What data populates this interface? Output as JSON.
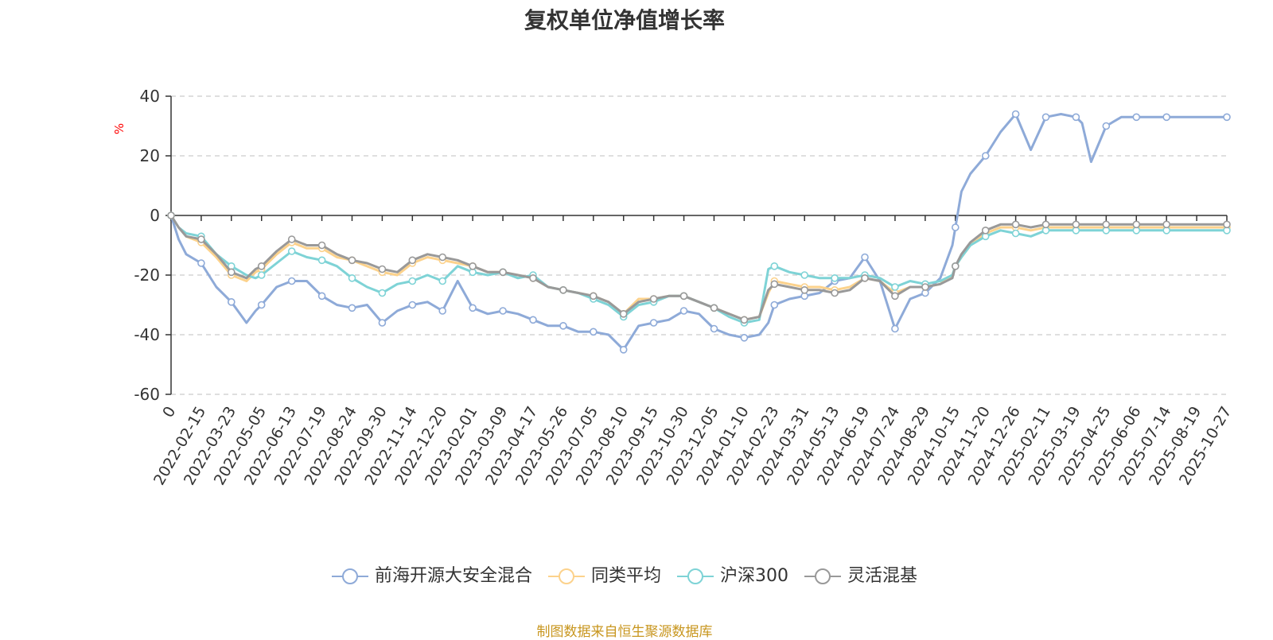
{
  "chart_data": {
    "type": "line",
    "title": "复权单位净值增长率",
    "ylabel": "%",
    "ylim": [
      -60,
      40
    ],
    "yticks": [
      40,
      20,
      0,
      -20,
      -40,
      -60
    ],
    "grid": true,
    "legend_position": "bottom",
    "source_note": "制图数据来自恒生聚源数据库",
    "x_tick_labels": [
      "0",
      "2022-02-15",
      "2022-03-23",
      "2022-05-05",
      "2022-06-13",
      "2022-07-19",
      "2022-08-24",
      "2022-09-30",
      "2022-11-14",
      "2022-12-20",
      "2023-02-01",
      "2023-03-09",
      "2023-04-17",
      "2023-05-26",
      "2023-07-05",
      "2023-08-10",
      "2023-09-15",
      "2023-10-30",
      "2023-12-05",
      "2024-01-10",
      "2024-02-23",
      "2024-03-31",
      "2024-05-13",
      "2024-06-19",
      "2024-07-24",
      "2024-08-29",
      "2024-10-15",
      "2024-11-20",
      "2024-12-26",
      "2025-02-11",
      "2025-03-19",
      "2025-04-25",
      "2025-06-06",
      "2025-07-14",
      "2025-08-19",
      "2025-10-27"
    ],
    "x": [
      0,
      0.25,
      0.5,
      1,
      1.5,
      2,
      2.5,
      2.8,
      3,
      3.5,
      4,
      4.5,
      5,
      5.5,
      6,
      6.5,
      7,
      7.5,
      8,
      8.5,
      9,
      9.5,
      10,
      10.5,
      11,
      11.5,
      12,
      12.5,
      13,
      13.5,
      14,
      14.5,
      15,
      15.5,
      16,
      16.5,
      17,
      17.5,
      18,
      18.5,
      19,
      19.5,
      19.8,
      20,
      20.5,
      21,
      21.5,
      22,
      22.5,
      23,
      23.5,
      24,
      24.5,
      25,
      25.5,
      25.9,
      26,
      26.2,
      26.5,
      27,
      27.5,
      28,
      28.5,
      29,
      29.5,
      30,
      30.2,
      30.5,
      31,
      31.5,
      32,
      32.5,
      33,
      33.3,
      33.6,
      33.9,
      34.2,
      34.5,
      34.8,
      35
    ],
    "series": [
      {
        "name": "前海开源大安全混合",
        "color": "#8eaad8",
        "values": [
          0,
          -8,
          -13,
          -16,
          -24,
          -29,
          -36,
          -32,
          -30,
          -24,
          -22,
          -22,
          -27,
          -30,
          -31,
          -30,
          -36,
          -32,
          -30,
          -29,
          -32,
          -22,
          -31,
          -33,
          -32,
          -33,
          -35,
          -37,
          -37,
          -39,
          -39,
          -40,
          -45,
          -37,
          -36,
          -35,
          -32,
          -33,
          -38,
          -40,
          -41,
          -40,
          -36,
          -30,
          -28,
          -27,
          -26,
          -22,
          -21,
          -14,
          -22,
          -38,
          -28,
          -26,
          -21,
          -10,
          -4,
          8,
          14,
          20,
          28,
          34,
          22,
          33,
          34,
          33,
          31,
          18,
          30,
          33,
          33,
          33,
          33,
          33,
          33,
          33,
          33,
          33,
          33,
          33
        ]
      },
      {
        "name": "同类平均",
        "color": "#fcd28c",
        "values": [
          0,
          -4,
          -7,
          -9,
          -14,
          -20,
          -22,
          -19,
          -18,
          -13,
          -9,
          -11,
          -11,
          -14,
          -15,
          -17,
          -19,
          -20,
          -16,
          -14,
          -15,
          -16,
          -17,
          -19,
          -19,
          -20,
          -21,
          -24,
          -25,
          -26,
          -27,
          -29,
          -33,
          -28,
          -28,
          -27,
          -27,
          -29,
          -31,
          -33,
          -35,
          -34,
          -26,
          -22,
          -23,
          -24,
          -24,
          -25,
          -24,
          -21,
          -22,
          -26,
          -24,
          -24,
          -23,
          -20,
          -17,
          -14,
          -10,
          -6,
          -4,
          -4,
          -5,
          -4,
          -4,
          -4,
          -4,
          -4,
          -4,
          -4,
          -4,
          -4,
          -4,
          -4,
          -4,
          -4,
          -4,
          -4,
          -4,
          -4
        ]
      },
      {
        "name": "沪深300",
        "color": "#7ed3d6",
        "values": [
          0,
          -4,
          -6,
          -7,
          -13,
          -17,
          -20,
          -21,
          -20,
          -16,
          -12,
          -14,
          -15,
          -17,
          -21,
          -24,
          -26,
          -23,
          -22,
          -20,
          -22,
          -17,
          -19,
          -20,
          -19,
          -21,
          -20,
          -24,
          -25,
          -26,
          -28,
          -30,
          -34,
          -30,
          -29,
          -27,
          -27,
          -29,
          -31,
          -34,
          -36,
          -35,
          -18,
          -17,
          -19,
          -20,
          -21,
          -21,
          -21,
          -20,
          -21,
          -24,
          -22,
          -23,
          -22,
          -20,
          -17,
          -14,
          -10,
          -7,
          -5,
          -6,
          -7,
          -5,
          -5,
          -5,
          -5,
          -5,
          -5,
          -5,
          -5,
          -5,
          -5,
          -5,
          -5,
          -5,
          -5,
          -5,
          -5,
          -5
        ]
      },
      {
        "name": "灵活混基",
        "color": "#999999",
        "values": [
          0,
          -4,
          -7,
          -8,
          -13,
          -19,
          -21,
          -18,
          -17,
          -12,
          -8,
          -10,
          -10,
          -13,
          -15,
          -16,
          -18,
          -19,
          -15,
          -13,
          -14,
          -15,
          -17,
          -19,
          -19,
          -20,
          -21,
          -24,
          -25,
          -26,
          -27,
          -29,
          -33,
          -29,
          -28,
          -27,
          -27,
          -29,
          -31,
          -33,
          -35,
          -34,
          -25,
          -23,
          -24,
          -25,
          -25,
          -26,
          -25,
          -21,
          -22,
          -27,
          -24,
          -24,
          -23,
          -21,
          -17,
          -13,
          -9,
          -5,
          -3,
          -3,
          -4,
          -3,
          -3,
          -3,
          -3,
          -3,
          -3,
          -3,
          -3,
          -3,
          -3,
          -3,
          -3,
          -3,
          -3,
          -3,
          -3,
          -3
        ]
      }
    ]
  }
}
